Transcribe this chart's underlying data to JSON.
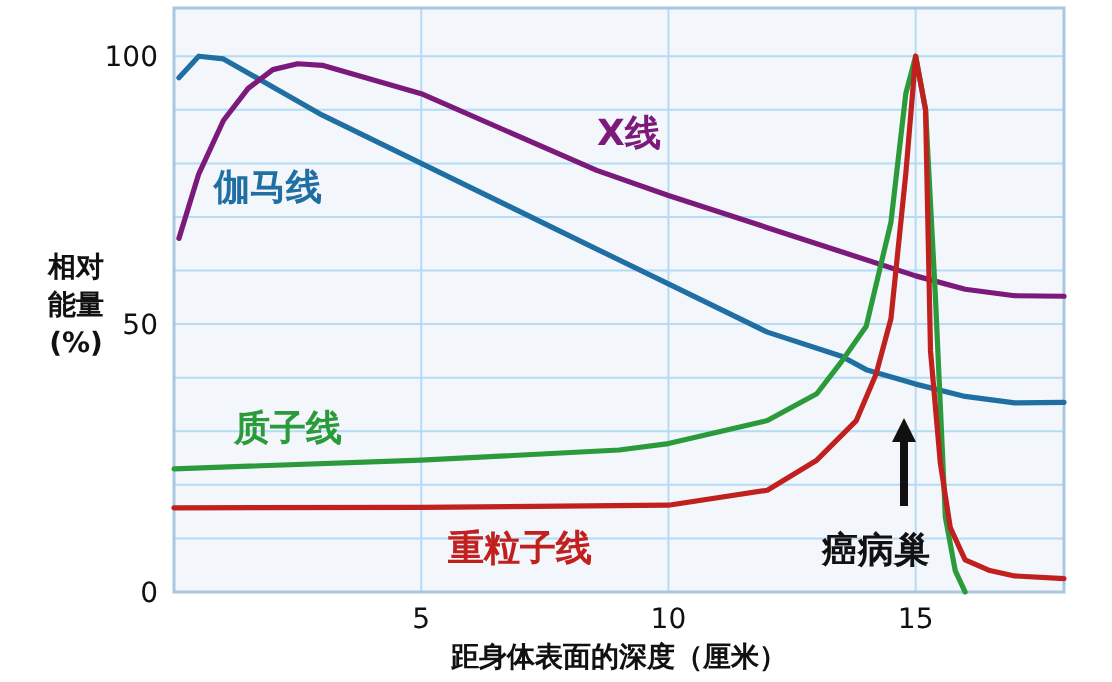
{
  "chart_data": {
    "type": "line",
    "xlabel": "距身体表面的深度（厘米）",
    "ylabel": "相对能量 (%)",
    "xlim": [
      0,
      18
    ],
    "ylim": [
      0,
      109
    ],
    "xticks": [
      5,
      10,
      15
    ],
    "yticks": [
      0,
      {
        "value": 10,
        "label": null
      },
      {
        "value": 20,
        "label": null
      },
      {
        "value": 30,
        "label": null
      },
      {
        "value": 40,
        "label": null
      },
      50,
      {
        "value": 60,
        "label": null
      },
      {
        "value": 70,
        "label": null
      },
      {
        "value": 80,
        "label": null
      },
      {
        "value": 90,
        "label": null
      },
      100
    ],
    "grid": true,
    "series": [
      {
        "name": "伽马线",
        "color": "#1f6fa3",
        "x": [
          0.1,
          0.5,
          1,
          3,
          5,
          8.55,
          10,
          12,
          13.5,
          14,
          15,
          16,
          17,
          18
        ],
        "values": [
          96,
          100,
          99.5,
          89,
          80,
          64,
          57.5,
          48.5,
          44,
          41.5,
          38.8,
          36.5,
          35.3,
          35.4
        ]
      },
      {
        "name": "X线",
        "color": "#7b1a7b",
        "x": [
          0.1,
          0.5,
          1,
          1.5,
          2,
          2.5,
          3,
          5,
          8.55,
          10,
          13,
          15,
          16,
          17,
          18
        ],
        "values": [
          66,
          78,
          88,
          94,
          97.5,
          98.6,
          98.3,
          93,
          78.7,
          74,
          65,
          59,
          56.5,
          55.3,
          55.2
        ]
      },
      {
        "name": "质子线",
        "color": "#2a9a3a",
        "x": [
          0,
          5,
          9,
          10,
          12,
          13,
          13.5,
          14,
          14.5,
          14.8,
          15,
          15.2,
          15.4,
          15.6,
          15.8,
          16
        ],
        "values": [
          23,
          24.6,
          26.5,
          27.7,
          32,
          37,
          43,
          49.6,
          69,
          93,
          100,
          90,
          55,
          14,
          4,
          0
        ]
      },
      {
        "name": "重粒子线",
        "color": "#c0201e",
        "x": [
          0,
          5,
          10,
          12,
          13,
          13.8,
          14.2,
          14.5,
          14.8,
          15,
          15.2,
          15.3,
          15.5,
          15.7,
          16,
          16.5,
          17,
          18
        ],
        "values": [
          15.7,
          15.8,
          16.2,
          19,
          24.6,
          32,
          40.7,
          51,
          78,
          100,
          90,
          45,
          24,
          12,
          6,
          4,
          3,
          2.5
        ]
      }
    ],
    "annotations": [
      "癌病巢"
    ]
  }
}
